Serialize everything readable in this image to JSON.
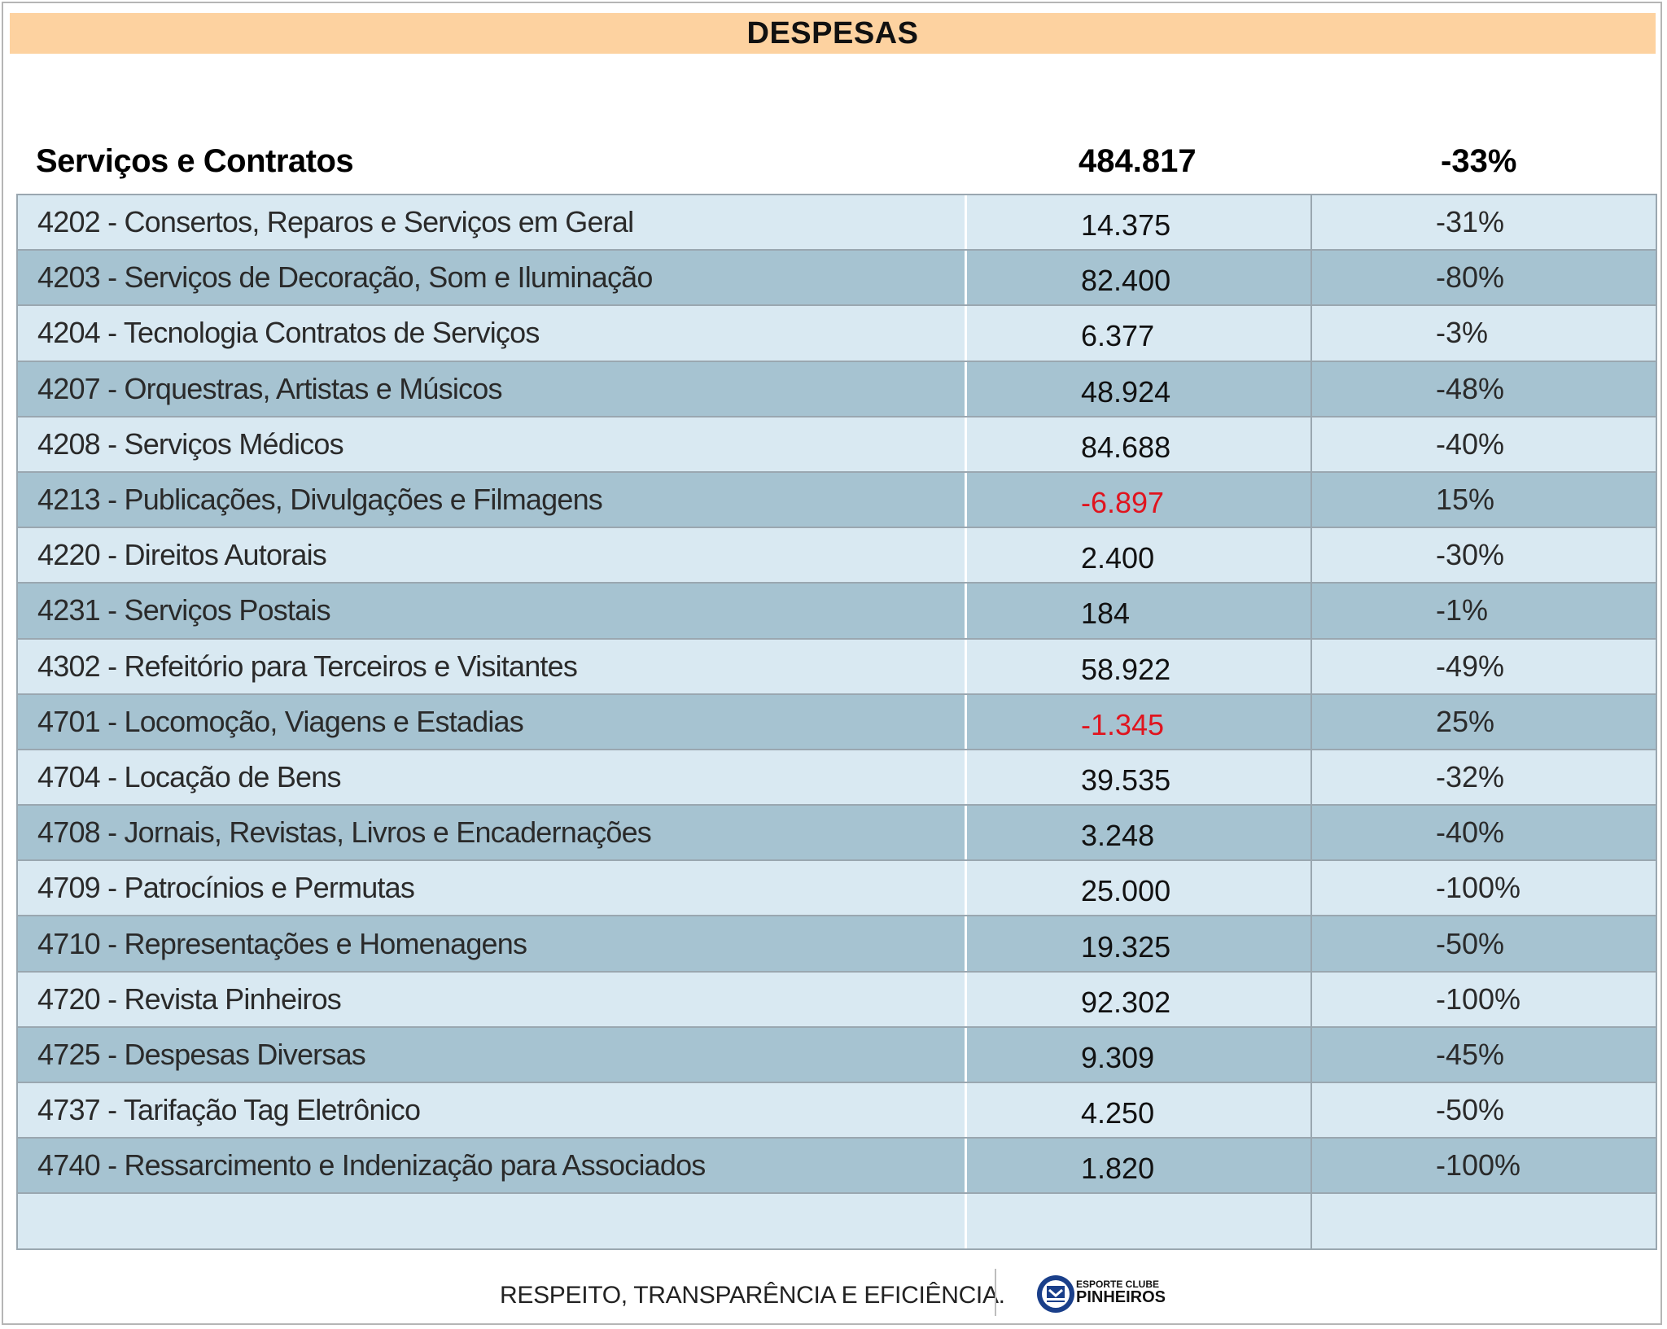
{
  "header": {
    "title": "DESPESAS"
  },
  "summary": {
    "label": "Serviços e Contratos",
    "value": "484.817",
    "percent": "-33%"
  },
  "rows": [
    {
      "desc": "4202 - Consertos, Reparos e Serviços em Geral",
      "value": "14.375",
      "percent": "-31%",
      "negative": false
    },
    {
      "desc": "4203 - Serviços de Decoração, Som e Iluminação",
      "value": "82.400",
      "percent": "-80%",
      "negative": false
    },
    {
      "desc": "4204 - Tecnologia Contratos de Serviços",
      "value": "6.377",
      "percent": "-3%",
      "negative": false
    },
    {
      "desc": "4207 - Orquestras, Artistas e Músicos",
      "value": "48.924",
      "percent": "-48%",
      "negative": false
    },
    {
      "desc": "4208 - Serviços Médicos",
      "value": "84.688",
      "percent": "-40%",
      "negative": false
    },
    {
      "desc": "4213 - Publicações, Divulgações e Filmagens",
      "value": "-6.897",
      "percent": "15%",
      "negative": true
    },
    {
      "desc": "4220 - Direitos Autorais",
      "value": "2.400",
      "percent": "-30%",
      "negative": false
    },
    {
      "desc": "4231 - Serviços Postais",
      "value": "184",
      "percent": "-1%",
      "negative": false
    },
    {
      "desc": "4302 - Refeitório para Terceiros e Visitantes",
      "value": "58.922",
      "percent": "-49%",
      "negative": false
    },
    {
      "desc": "4701 - Locomoção, Viagens e Estadias",
      "value": "-1.345",
      "percent": "25%",
      "negative": true
    },
    {
      "desc": "4704 - Locação de Bens",
      "value": "39.535",
      "percent": "-32%",
      "negative": false
    },
    {
      "desc": "4708 - Jornais, Revistas, Livros e Encadernações",
      "value": "3.248",
      "percent": "-40%",
      "negative": false
    },
    {
      "desc": "4709 - Patrocínios e Permutas",
      "value": "25.000",
      "percent": "-100%",
      "negative": false
    },
    {
      "desc": "4710 - Representações e Homenagens",
      "value": "19.325",
      "percent": "-50%",
      "negative": false
    },
    {
      "desc": "4720 - Revista Pinheiros",
      "value": "92.302",
      "percent": "-100%",
      "negative": false
    },
    {
      "desc": "4725 - Despesas Diversas",
      "value": "9.309",
      "percent": "-45%",
      "negative": false
    },
    {
      "desc": "4737 - Tarifação Tag Eletrônico",
      "value": "4.250",
      "percent": "-50%",
      "negative": false
    },
    {
      "desc": "4740 - Ressarcimento e Indenização para Associados",
      "value": "1.820",
      "percent": "-100%",
      "negative": false
    },
    {
      "desc": "",
      "value": "",
      "percent": "",
      "negative": false
    }
  ],
  "footer": {
    "slogan": "RESPEITO, TRANSPARÊNCIA E EFICIÊNCIA.",
    "logo_top": "ESPORTE CLUBE",
    "logo_main": "PINHEIROS",
    "logo_icon": "pinheiros-crest-icon"
  },
  "colors": {
    "banner": "#fdd2a0",
    "row_light": "#d9e9f2",
    "row_dark": "#a6c3d1",
    "negative": "#e0141e",
    "logo_blue": "#1a3f8a"
  }
}
